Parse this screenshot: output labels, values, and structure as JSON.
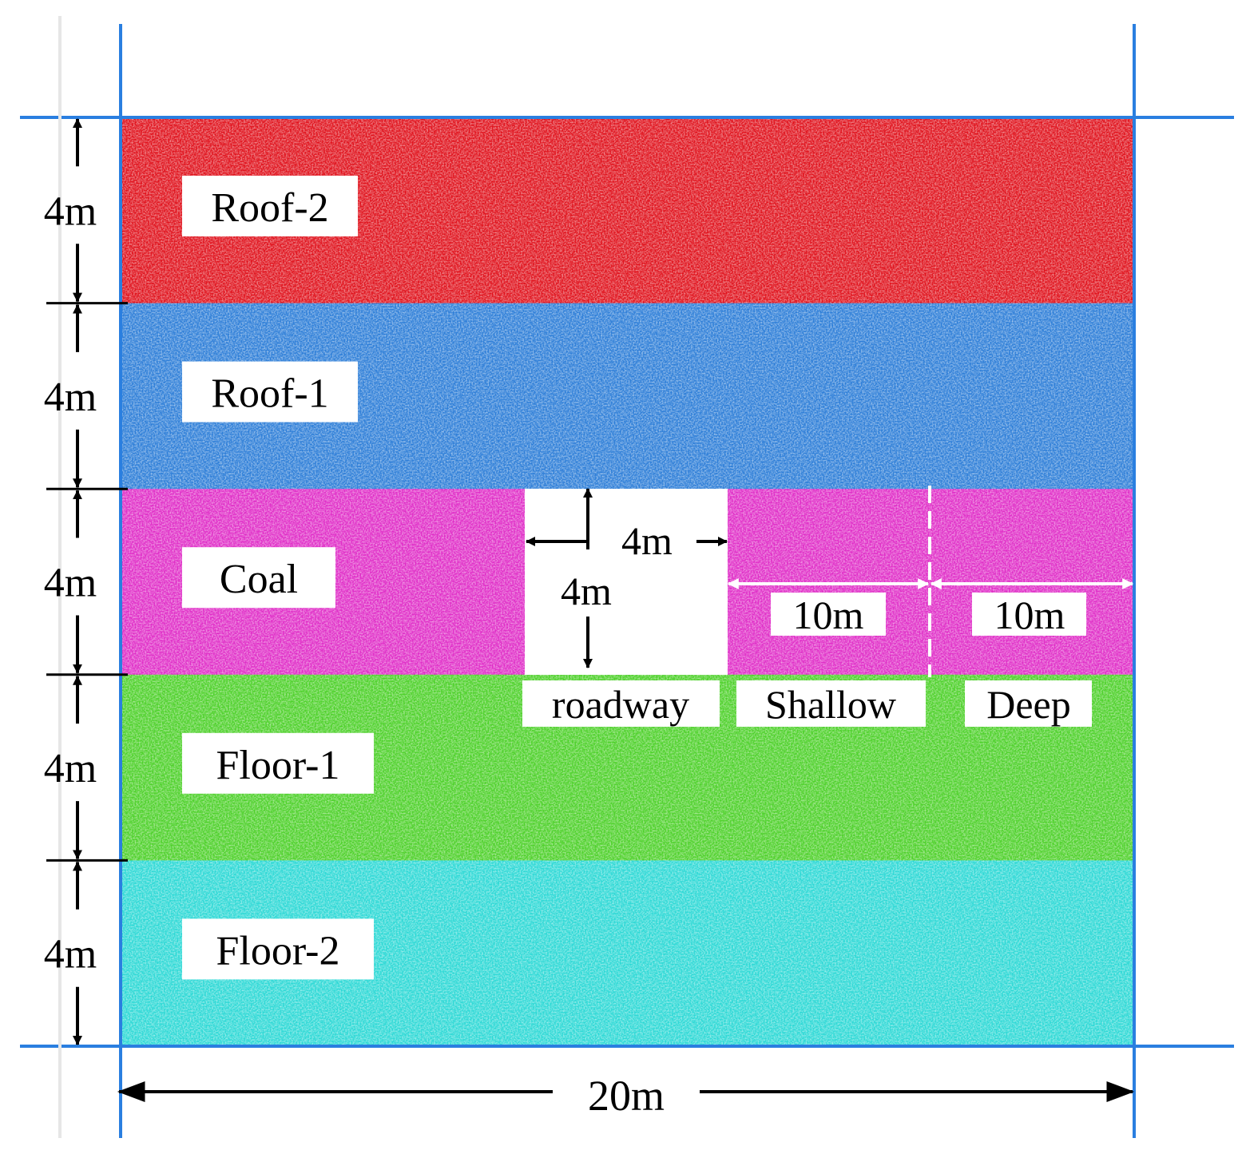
{
  "layers": [
    {
      "name": "Roof-2",
      "thickness_label": "4m",
      "color": "#e0141e",
      "noise_dark": "#5a0000"
    },
    {
      "name": "Roof-1",
      "thickness_label": "4m",
      "color": "#2f7fd8",
      "noise_dark": "#0b2f66"
    },
    {
      "name": "Coal",
      "thickness_label": "4m",
      "color": "#e030c8",
      "noise_dark": "#5a0a50"
    },
    {
      "name": "Floor-1",
      "thickness_label": "4m",
      "color": "#4fd12c",
      "noise_dark": "#164d05"
    },
    {
      "name": "Floor-2",
      "thickness_label": "4m",
      "color": "#2fd9d6",
      "noise_dark": "#0a4d4c"
    }
  ],
  "roadway": {
    "label": "roadway",
    "width_label": "4m",
    "height_label": "4m",
    "fill": "#ffffff"
  },
  "zones": {
    "shallow": {
      "label": "Shallow",
      "length_label": "10m"
    },
    "deep": {
      "label": "Deep",
      "length_label": "10m"
    }
  },
  "total_width_label": "20m",
  "colors": {
    "frame": "#2a7fe0",
    "dimension": "#000000",
    "zone_arrow": "#ffffff"
  }
}
